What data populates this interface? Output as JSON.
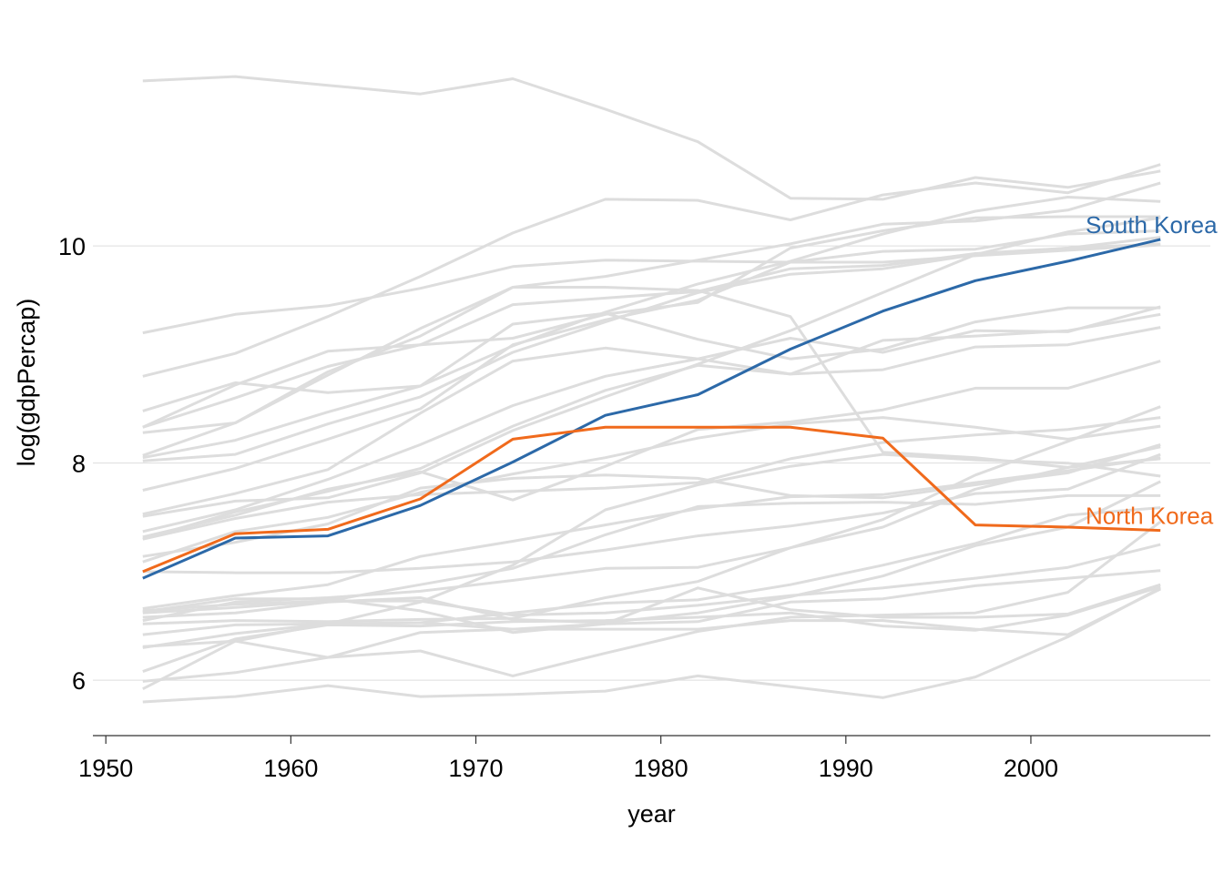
{
  "chart_data": {
    "type": "line",
    "title": "",
    "xlabel": "year",
    "ylabel": "log(gdpPercap)",
    "xlim": [
      1949.3,
      2009.7
    ],
    "ylim": [
      5.49,
      11.93
    ],
    "x_ticks": [
      1950,
      1960,
      1970,
      1980,
      1990,
      2000
    ],
    "y_ticks": [
      6,
      8,
      10
    ],
    "grid": "horizontal",
    "x": [
      1952,
      1957,
      1962,
      1967,
      1972,
      1977,
      1982,
      1987,
      1992,
      1997,
      2002,
      2007
    ],
    "background_color": "#dddddd",
    "highlighted_series": [
      {
        "name": "South Korea",
        "color": "#2c69a8",
        "values": [
          6.94,
          7.31,
          7.33,
          7.61,
          8.01,
          8.44,
          8.63,
          9.05,
          9.4,
          9.68,
          9.86,
          10.06
        ]
      },
      {
        "name": "North Korea",
        "color": "#f06a1c",
        "values": [
          7.0,
          7.35,
          7.39,
          7.67,
          8.22,
          8.33,
          8.33,
          8.33,
          8.23,
          7.43,
          7.41,
          7.38
        ]
      }
    ],
    "background_series": [
      {
        "values": [
          11.52,
          11.56,
          11.48,
          11.4,
          11.54,
          11.26,
          10.96,
          10.44,
          10.43,
          10.63,
          10.54,
          10.69
        ]
      },
      {
        "values": [
          9.2,
          9.37,
          9.45,
          9.61,
          9.81,
          9.87,
          9.86,
          9.85,
          9.85,
          9.91,
          9.96,
          10.01
        ]
      },
      {
        "values": [
          8.8,
          9.01,
          9.35,
          9.72,
          10.12,
          10.43,
          10.42,
          10.24,
          10.47,
          10.58,
          10.49,
          10.75
        ]
      },
      {
        "values": [
          8.33,
          8.72,
          9.03,
          9.09,
          9.15,
          9.37,
          9.48,
          9.98,
          10.14,
          10.26,
          10.27,
          10.27
        ]
      },
      {
        "values": [
          8.28,
          8.37,
          8.81,
          9.24,
          9.62,
          9.72,
          9.87,
          10.02,
          10.2,
          10.23,
          10.33,
          10.58
        ]
      },
      {
        "values": [
          8.48,
          8.74,
          8.65,
          8.71,
          9.28,
          9.38,
          9.14,
          8.96,
          9.05,
          9.3,
          9.43,
          9.43
        ]
      },
      {
        "values": [
          8.33,
          8.6,
          8.89,
          9.09,
          9.46,
          9.52,
          9.58,
          9.79,
          9.82,
          9.93,
          9.98,
          10.08
        ]
      },
      {
        "values": [
          8.07,
          8.37,
          8.84,
          9.17,
          9.62,
          9.62,
          9.59,
          9.35,
          8.1,
          8.05,
          7.96,
          8.04
        ]
      },
      {
        "values": [
          8.05,
          8.21,
          8.47,
          8.71,
          9.08,
          9.39,
          9.65,
          9.86,
          10.11,
          10.32,
          10.45,
          10.41
        ]
      },
      {
        "values": [
          7.75,
          7.95,
          8.22,
          8.5,
          9.09,
          9.32,
          9.5,
          9.85,
          9.95,
          9.97,
          10.11,
          10.14
        ]
      },
      {
        "values": [
          8.02,
          8.08,
          8.36,
          8.61,
          9.02,
          9.3,
          9.57,
          9.74,
          9.79,
          9.92,
          9.98,
          10.02
        ]
      },
      {
        "values": [
          7.51,
          7.65,
          7.68,
          7.91,
          8.3,
          8.61,
          8.91,
          9.22,
          9.57,
          9.92,
          10.13,
          10.26
        ]
      },
      {
        "values": [
          7.53,
          7.72,
          7.94,
          8.46,
          8.94,
          9.06,
          8.96,
          8.82,
          8.86,
          9.07,
          9.09,
          9.25
        ]
      },
      {
        "values": [
          7.3,
          7.55,
          7.74,
          7.95,
          8.34,
          8.67,
          8.9,
          8.82,
          9.13,
          9.17,
          9.22,
          9.37
        ]
      },
      {
        "values": [
          7.37,
          7.57,
          7.85,
          8.17,
          8.53,
          8.8,
          8.96,
          9.15,
          9.02,
          9.22,
          9.21,
          9.44
        ]
      },
      {
        "values": [
          7.32,
          7.52,
          7.76,
          7.92,
          7.66,
          7.97,
          8.31,
          8.38,
          8.49,
          8.69,
          8.69,
          8.94
        ]
      },
      {
        "values": [
          7.3,
          7.49,
          7.64,
          7.71,
          7.74,
          7.77,
          7.82,
          8.04,
          8.19,
          8.26,
          8.31,
          8.42
        ]
      },
      {
        "values": [
          7.14,
          7.27,
          7.44,
          7.77,
          7.86,
          7.89,
          7.86,
          7.7,
          7.68,
          7.8,
          7.91,
          8.17
        ]
      },
      {
        "values": [
          7.09,
          7.37,
          7.5,
          7.73,
          7.9,
          8.05,
          8.23,
          8.36,
          8.42,
          8.33,
          8.22,
          8.34
        ]
      },
      {
        "values": [
          7.0,
          6.99,
          6.99,
          7.03,
          7.09,
          7.2,
          7.33,
          7.42,
          7.54,
          7.72,
          7.76,
          8.08
        ]
      },
      {
        "values": [
          6.62,
          6.67,
          6.73,
          6.88,
          7.03,
          7.34,
          7.6,
          7.63,
          7.64,
          7.62,
          7.7,
          7.7
        ]
      },
      {
        "values": [
          6.66,
          6.78,
          6.88,
          7.14,
          7.28,
          7.43,
          7.58,
          7.69,
          7.71,
          7.82,
          7.93,
          8.05
        ]
      },
      {
        "values": [
          6.55,
          6.72,
          6.76,
          6.82,
          6.92,
          7.03,
          7.04,
          7.22,
          7.48,
          7.89,
          8.2,
          8.52
        ]
      },
      {
        "values": [
          6.31,
          6.36,
          6.52,
          6.72,
          7.06,
          7.57,
          7.8,
          7.97,
          8.08,
          8.03,
          8.0,
          7.88
        ]
      },
      {
        "values": [
          6.52,
          6.55,
          6.54,
          6.56,
          6.57,
          6.76,
          6.91,
          7.22,
          7.41,
          7.76,
          7.96,
          8.15
        ]
      },
      {
        "values": [
          6.58,
          6.62,
          6.72,
          6.76,
          6.56,
          6.53,
          6.62,
          6.77,
          6.96,
          7.24,
          7.41,
          7.83
        ]
      },
      {
        "values": [
          6.64,
          6.7,
          6.73,
          6.73,
          6.6,
          6.62,
          6.69,
          6.78,
          6.85,
          6.94,
          7.04,
          7.25
        ]
      },
      {
        "values": [
          6.63,
          6.75,
          6.75,
          6.64,
          6.44,
          6.52,
          6.85,
          6.65,
          6.58,
          6.58,
          6.61,
          6.88
        ]
      },
      {
        "values": [
          6.42,
          6.51,
          6.52,
          6.53,
          6.62,
          6.71,
          6.74,
          6.88,
          7.06,
          7.26,
          7.52,
          7.59
        ]
      },
      {
        "values": [
          6.3,
          6.43,
          6.52,
          6.53,
          6.47,
          6.52,
          6.54,
          6.72,
          6.75,
          6.87,
          6.94,
          7.01
        ]
      },
      {
        "values": [
          6.08,
          6.38,
          6.51,
          6.5,
          6.54,
          6.55,
          6.58,
          6.62,
          6.5,
          6.46,
          6.6,
          6.86
        ]
      },
      {
        "values": [
          5.99,
          6.07,
          6.21,
          6.27,
          6.04,
          6.25,
          6.45,
          6.58,
          6.6,
          6.62,
          6.81,
          7.46
        ]
      },
      {
        "values": [
          5.92,
          6.36,
          6.21,
          6.44,
          6.47,
          6.47,
          6.47,
          6.55,
          6.55,
          6.47,
          6.42,
          6.84
        ]
      },
      {
        "values": [
          5.8,
          5.85,
          5.95,
          5.85,
          5.87,
          5.9,
          6.04,
          5.94,
          5.84,
          6.03,
          6.4,
          6.85
        ]
      }
    ]
  }
}
